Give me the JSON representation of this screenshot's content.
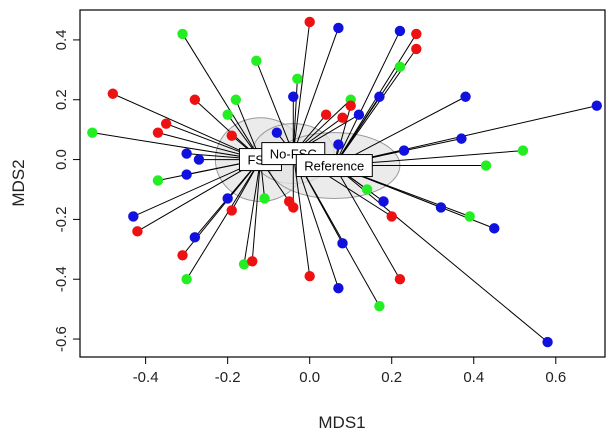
{
  "chart_data": {
    "type": "scatter",
    "title": "",
    "xlabel": "MDS1",
    "ylabel": "MDS2",
    "xlim": [
      -0.56,
      0.72
    ],
    "ylim": [
      -0.66,
      0.5
    ],
    "xticks": [
      "-0.4",
      "-0.2",
      "0.0",
      "0.2",
      "0.4",
      "0.6"
    ],
    "xtick_values": [
      -0.4,
      -0.2,
      0.0,
      0.2,
      0.4,
      0.6
    ],
    "yticks": [
      "-0.6",
      "-0.4",
      "-0.2",
      "0.0",
      "0.2",
      "0.4"
    ],
    "ytick_values": [
      -0.6,
      -0.4,
      -0.2,
      0.0,
      0.2,
      0.4
    ],
    "colors": {
      "red": "#ee1111",
      "green": "#22ee22",
      "blue": "#1111dd",
      "ellipse_fill": "#e4e4e4",
      "ellipse_stroke": "#999999"
    },
    "groups": [
      {
        "label": "FSC",
        "centroid": [
          -0.12,
          0.0
        ],
        "ellipse": {
          "rx": 0.11,
          "ry": 0.14
        },
        "points": [
          {
            "x": -0.48,
            "y": 0.22,
            "c": "red"
          },
          {
            "x": -0.53,
            "y": 0.09,
            "c": "green"
          },
          {
            "x": -0.37,
            "y": 0.09,
            "c": "red"
          },
          {
            "x": -0.35,
            "y": 0.12,
            "c": "red"
          },
          {
            "x": -0.28,
            "y": 0.2,
            "c": "red"
          },
          {
            "x": -0.3,
            "y": 0.02,
            "c": "blue"
          },
          {
            "x": -0.27,
            "y": 0.0,
            "c": "blue"
          },
          {
            "x": -0.3,
            "y": -0.05,
            "c": "blue"
          },
          {
            "x": -0.37,
            "y": -0.07,
            "c": "green"
          },
          {
            "x": -0.43,
            "y": -0.19,
            "c": "blue"
          },
          {
            "x": -0.42,
            "y": -0.24,
            "c": "red"
          },
          {
            "x": -0.28,
            "y": -0.26,
            "c": "blue"
          },
          {
            "x": -0.31,
            "y": -0.32,
            "c": "red"
          },
          {
            "x": -0.3,
            "y": -0.4,
            "c": "green"
          },
          {
            "x": -0.16,
            "y": -0.35,
            "c": "green"
          },
          {
            "x": -0.14,
            "y": -0.34,
            "c": "red"
          },
          {
            "x": -0.19,
            "y": -0.17,
            "c": "red"
          },
          {
            "x": -0.2,
            "y": -0.13,
            "c": "blue"
          },
          {
            "x": -0.11,
            "y": -0.13,
            "c": "green"
          },
          {
            "x": -0.31,
            "y": 0.42,
            "c": "green"
          },
          {
            "x": -0.19,
            "y": 0.08,
            "c": "red"
          },
          {
            "x": -0.2,
            "y": 0.15,
            "c": "green"
          },
          {
            "x": -0.18,
            "y": 0.2,
            "c": "green"
          },
          {
            "x": -0.05,
            "y": -0.14,
            "c": "red"
          }
        ]
      },
      {
        "label": "No-FSC",
        "centroid": [
          -0.04,
          0.02
        ],
        "ellipse": {
          "rx": 0.1,
          "ry": 0.1
        },
        "points": [
          {
            "x": -0.13,
            "y": 0.33,
            "c": "green"
          },
          {
            "x": -0.03,
            "y": 0.27,
            "c": "green"
          },
          {
            "x": -0.04,
            "y": 0.21,
            "c": "blue"
          },
          {
            "x": 0.0,
            "y": 0.46,
            "c": "red"
          },
          {
            "x": 0.07,
            "y": 0.44,
            "c": "blue"
          },
          {
            "x": 0.04,
            "y": 0.15,
            "c": "red"
          },
          {
            "x": 0.1,
            "y": 0.2,
            "c": "green"
          },
          {
            "x": 0.12,
            "y": 0.15,
            "c": "blue"
          },
          {
            "x": 0.0,
            "y": -0.39,
            "c": "red"
          },
          {
            "x": -0.04,
            "y": -0.16,
            "c": "red"
          },
          {
            "x": -0.08,
            "y": 0.09,
            "c": "blue"
          },
          {
            "x": 0.08,
            "y": 0.14,
            "c": "red"
          },
          {
            "x": 0.07,
            "y": -0.43,
            "c": "blue"
          },
          {
            "x": 0.08,
            "y": -0.28,
            "c": "blue"
          },
          {
            "x": 0.17,
            "y": -0.49,
            "c": "green"
          },
          {
            "x": 0.2,
            "y": -0.19,
            "c": "red"
          }
        ]
      },
      {
        "label": "Reference",
        "centroid": [
          0.06,
          -0.02
        ],
        "ellipse": {
          "rx": 0.16,
          "ry": 0.11
        },
        "points": [
          {
            "x": 0.22,
            "y": 0.43,
            "c": "blue"
          },
          {
            "x": 0.26,
            "y": 0.42,
            "c": "red"
          },
          {
            "x": 0.26,
            "y": 0.37,
            "c": "red"
          },
          {
            "x": 0.22,
            "y": 0.31,
            "c": "green"
          },
          {
            "x": 0.17,
            "y": 0.21,
            "c": "blue"
          },
          {
            "x": 0.38,
            "y": 0.21,
            "c": "blue"
          },
          {
            "x": 0.37,
            "y": 0.07,
            "c": "blue"
          },
          {
            "x": 0.7,
            "y": 0.18,
            "c": "blue"
          },
          {
            "x": 0.52,
            "y": 0.03,
            "c": "green"
          },
          {
            "x": 0.43,
            "y": -0.02,
            "c": "green"
          },
          {
            "x": 0.23,
            "y": 0.03,
            "c": "blue"
          },
          {
            "x": 0.32,
            "y": -0.16,
            "c": "blue"
          },
          {
            "x": 0.39,
            "y": -0.19,
            "c": "green"
          },
          {
            "x": 0.45,
            "y": -0.23,
            "c": "blue"
          },
          {
            "x": 0.58,
            "y": -0.61,
            "c": "blue"
          },
          {
            "x": 0.18,
            "y": -0.14,
            "c": "blue"
          },
          {
            "x": 0.1,
            "y": 0.18,
            "c": "red"
          },
          {
            "x": 0.22,
            "y": -0.4,
            "c": "red"
          },
          {
            "x": 0.07,
            "y": 0.05,
            "c": "blue"
          },
          {
            "x": 0.14,
            "y": -0.1,
            "c": "green"
          }
        ]
      }
    ]
  }
}
